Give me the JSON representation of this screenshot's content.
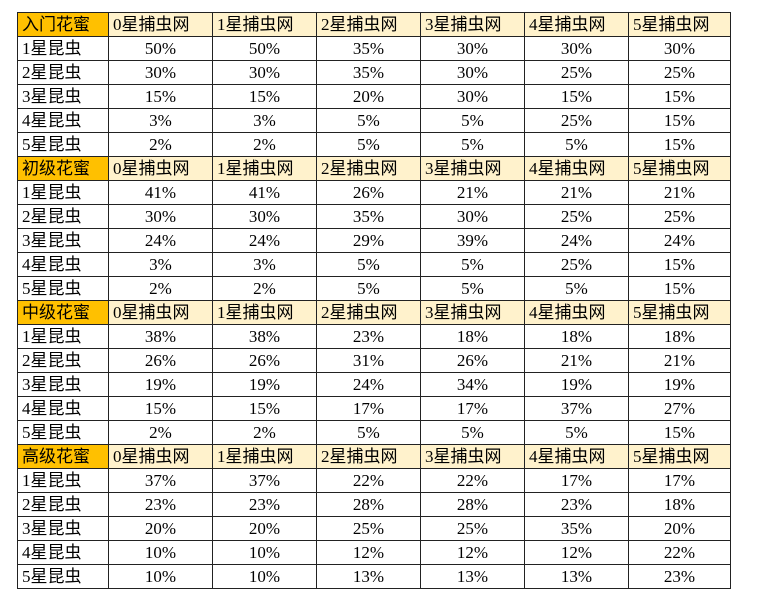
{
  "sections": [
    {
      "header": [
        "入门花蜜",
        "0星捕虫网",
        "1星捕虫网",
        "2星捕虫网",
        "3星捕虫网",
        "4星捕虫网",
        "5星捕虫网"
      ],
      "rows": [
        [
          "1星昆虫",
          "50%",
          "50%",
          "35%",
          "30%",
          "30%",
          "30%"
        ],
        [
          "2星昆虫",
          "30%",
          "30%",
          "35%",
          "30%",
          "25%",
          "25%"
        ],
        [
          "3星昆虫",
          "15%",
          "15%",
          "20%",
          "30%",
          "15%",
          "15%"
        ],
        [
          "4星昆虫",
          "3%",
          "3%",
          "5%",
          "5%",
          "25%",
          "15%"
        ],
        [
          "5星昆虫",
          "2%",
          "2%",
          "5%",
          "5%",
          "5%",
          "15%"
        ]
      ]
    },
    {
      "header": [
        "初级花蜜",
        "0星捕虫网",
        "1星捕虫网",
        "2星捕虫网",
        "3星捕虫网",
        "4星捕虫网",
        "5星捕虫网"
      ],
      "rows": [
        [
          "1星昆虫",
          "41%",
          "41%",
          "26%",
          "21%",
          "21%",
          "21%"
        ],
        [
          "2星昆虫",
          "30%",
          "30%",
          "35%",
          "30%",
          "25%",
          "25%"
        ],
        [
          "3星昆虫",
          "24%",
          "24%",
          "29%",
          "39%",
          "24%",
          "24%"
        ],
        [
          "4星昆虫",
          "3%",
          "3%",
          "5%",
          "5%",
          "25%",
          "15%"
        ],
        [
          "5星昆虫",
          "2%",
          "2%",
          "5%",
          "5%",
          "5%",
          "15%"
        ]
      ]
    },
    {
      "header": [
        "中级花蜜",
        "0星捕虫网",
        "1星捕虫网",
        "2星捕虫网",
        "3星捕虫网",
        "4星捕虫网",
        "5星捕虫网"
      ],
      "rows": [
        [
          "1星昆虫",
          "38%",
          "38%",
          "23%",
          "18%",
          "18%",
          "18%"
        ],
        [
          "2星昆虫",
          "26%",
          "26%",
          "31%",
          "26%",
          "21%",
          "21%"
        ],
        [
          "3星昆虫",
          "19%",
          "19%",
          "24%",
          "34%",
          "19%",
          "19%"
        ],
        [
          "4星昆虫",
          "15%",
          "15%",
          "17%",
          "17%",
          "37%",
          "27%"
        ],
        [
          "5星昆虫",
          "2%",
          "2%",
          "5%",
          "5%",
          "5%",
          "15%"
        ]
      ]
    },
    {
      "header": [
        "高级花蜜",
        "0星捕虫网",
        "1星捕虫网",
        "2星捕虫网",
        "3星捕虫网",
        "4星捕虫网",
        "5星捕虫网"
      ],
      "rows": [
        [
          "1星昆虫",
          "37%",
          "37%",
          "22%",
          "22%",
          "17%",
          "17%"
        ],
        [
          "2星昆虫",
          "23%",
          "23%",
          "28%",
          "28%",
          "23%",
          "18%"
        ],
        [
          "3星昆虫",
          "20%",
          "20%",
          "25%",
          "25%",
          "35%",
          "20%"
        ],
        [
          "4星昆虫",
          "10%",
          "10%",
          "12%",
          "12%",
          "12%",
          "22%"
        ],
        [
          "5星昆虫",
          "10%",
          "10%",
          "13%",
          "13%",
          "13%",
          "23%"
        ]
      ]
    }
  ]
}
